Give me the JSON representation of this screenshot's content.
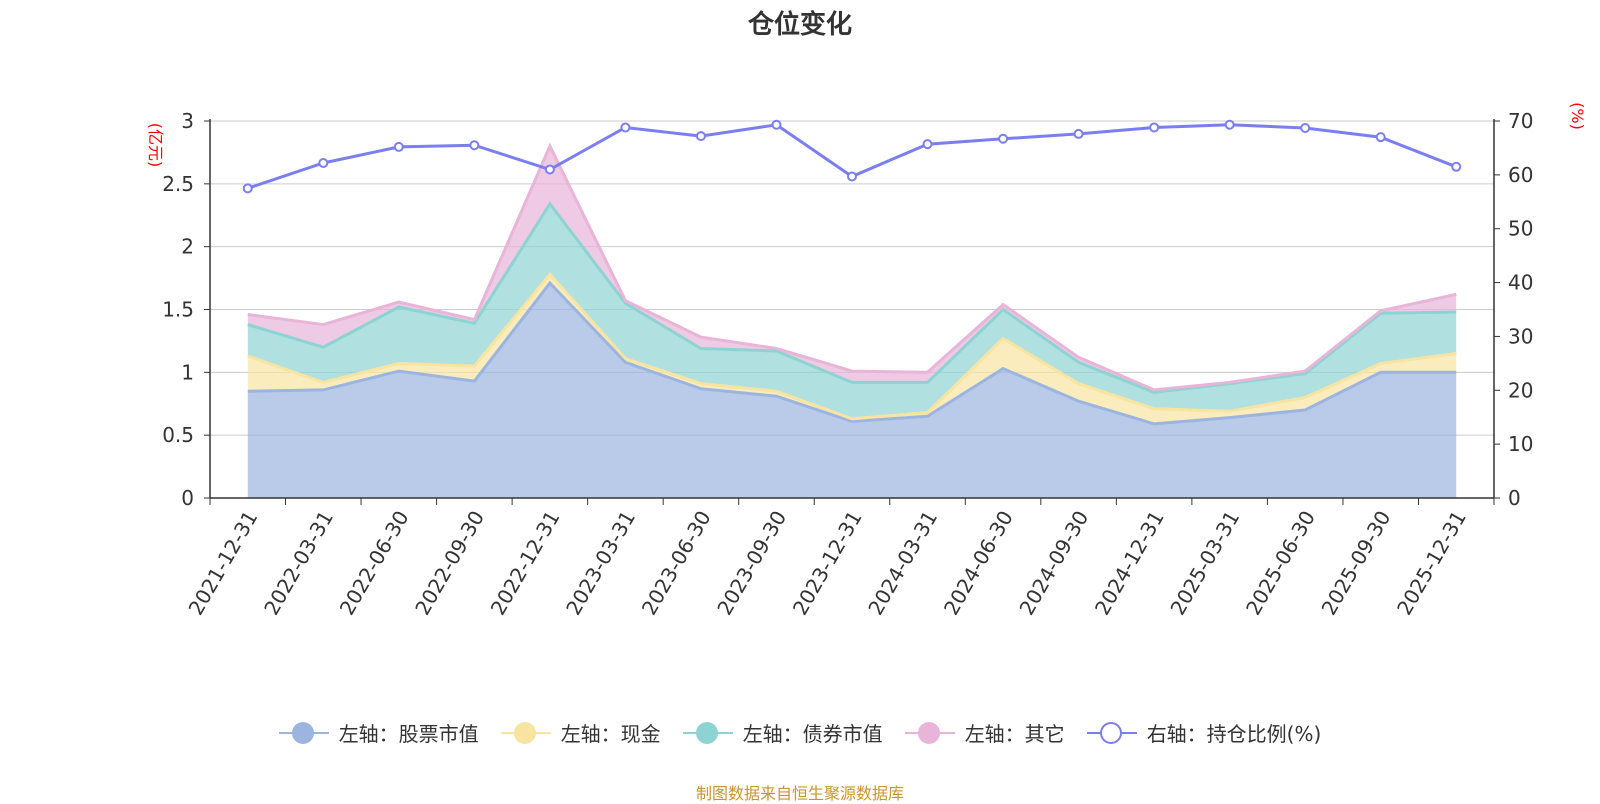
{
  "chart_data": {
    "type": "area",
    "title": "仓位变化",
    "left_axis_unit": "(亿元)",
    "right_axis_unit": "(%)",
    "categories": [
      "2021-12-31",
      "2022-03-31",
      "2022-06-30",
      "2022-09-30",
      "2022-12-31",
      "2023-03-31",
      "2023-06-30",
      "2023-09-30",
      "2023-12-31",
      "2024-03-31",
      "2024-06-30",
      "2024-09-30",
      "2024-12-31",
      "2025-03-31",
      "2025-06-30",
      "2025-09-30",
      "2025-12-31"
    ],
    "left_ylim": [
      0,
      3
    ],
    "left_ticks": [
      "0",
      "0.5",
      "1",
      "1.5",
      "2",
      "2.5",
      "3"
    ],
    "right_ylim": [
      0,
      70
    ],
    "right_ticks": [
      "0",
      "10",
      "20",
      "30",
      "40",
      "50",
      "60",
      "70"
    ],
    "stacked_series": [
      {
        "name": "左轴：股票市值",
        "axis": "left",
        "color": "#9bb5e0",
        "values": [
          0.85,
          0.86,
          1.01,
          0.93,
          1.71,
          1.08,
          0.87,
          0.81,
          0.61,
          0.65,
          1.03,
          0.77,
          0.59,
          0.64,
          0.7,
          1.0,
          1.0
        ]
      },
      {
        "name": "左轴：现金",
        "axis": "left",
        "color": "#f8e4a0",
        "values": [
          0.28,
          0.06,
          0.06,
          0.12,
          0.07,
          0.03,
          0.04,
          0.04,
          0.02,
          0.03,
          0.24,
          0.14,
          0.12,
          0.05,
          0.1,
          0.07,
          0.15
        ]
      },
      {
        "name": "左轴：债券市值",
        "axis": "left",
        "color": "#8ed3d3",
        "values": [
          0.25,
          0.28,
          0.45,
          0.34,
          0.56,
          0.44,
          0.28,
          0.32,
          0.29,
          0.24,
          0.23,
          0.17,
          0.13,
          0.22,
          0.19,
          0.4,
          0.33
        ]
      },
      {
        "name": "左轴：其它",
        "axis": "left",
        "color": "#e8b4d8",
        "values": [
          0.08,
          0.18,
          0.04,
          0.03,
          0.46,
          0.02,
          0.09,
          0.02,
          0.09,
          0.08,
          0.04,
          0.04,
          0.02,
          0.01,
          0.02,
          0.02,
          0.14
        ]
      }
    ],
    "line_series": {
      "name": "右轴：持仓比例(%)",
      "axis": "right",
      "color": "#7b7ef0",
      "values": [
        57.5,
        62.2,
        65.2,
        65.5,
        61.0,
        68.8,
        67.2,
        69.3,
        59.7,
        65.7,
        66.7,
        67.6,
        68.8,
        69.3,
        68.7,
        67.0,
        61.5
      ]
    },
    "legend_position": "bottom-center",
    "grid": true
  },
  "legend": [
    {
      "label": "左轴：股票市值",
      "color": "#9bb5e0",
      "hollow": false
    },
    {
      "label": "左轴：现金",
      "color": "#f8e4a0",
      "hollow": false
    },
    {
      "label": "左轴：债券市值",
      "color": "#8ed3d3",
      "hollow": false
    },
    {
      "label": "左轴：其它",
      "color": "#e8b4d8",
      "hollow": false
    },
    {
      "label": "右轴：持仓比例(%)",
      "color": "#7b7ef0",
      "hollow": true
    }
  ],
  "source_note": "制图数据来自恒生聚源数据库"
}
